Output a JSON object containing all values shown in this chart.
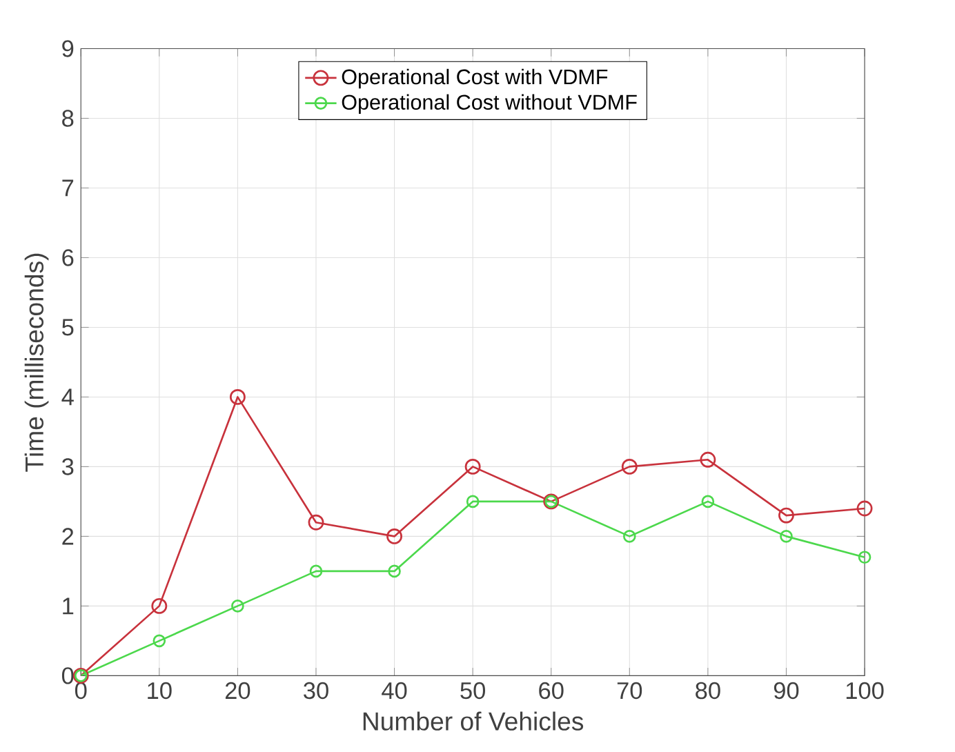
{
  "chart_data": {
    "type": "line",
    "xlabel": "Number of Vehicles",
    "ylabel": "Time (milliseconds)",
    "x": [
      0,
      10,
      20,
      30,
      40,
      50,
      60,
      70,
      80,
      90,
      100
    ],
    "series": [
      {
        "name": "Operational Cost with VDMF",
        "color": "#c8323c",
        "values": [
          0,
          1,
          4,
          2.2,
          2,
          3,
          2.5,
          3,
          3.1,
          2.3,
          2.4
        ]
      },
      {
        "name": "Operational Cost without VDMF",
        "color": "#4cd84c",
        "values": [
          0,
          0.5,
          1,
          1.5,
          1.5,
          2.5,
          2.5,
          2,
          2.5,
          2,
          1.7
        ]
      }
    ],
    "xlim": [
      0,
      100
    ],
    "ylim": [
      0,
      9
    ],
    "xticks": [
      0,
      10,
      20,
      30,
      40,
      50,
      60,
      70,
      80,
      90,
      100
    ],
    "yticks": [
      0,
      1,
      2,
      3,
      4,
      5,
      6,
      7,
      8,
      9
    ],
    "grid": true,
    "legend": "top",
    "marker": "circle",
    "line_style": "solid"
  }
}
